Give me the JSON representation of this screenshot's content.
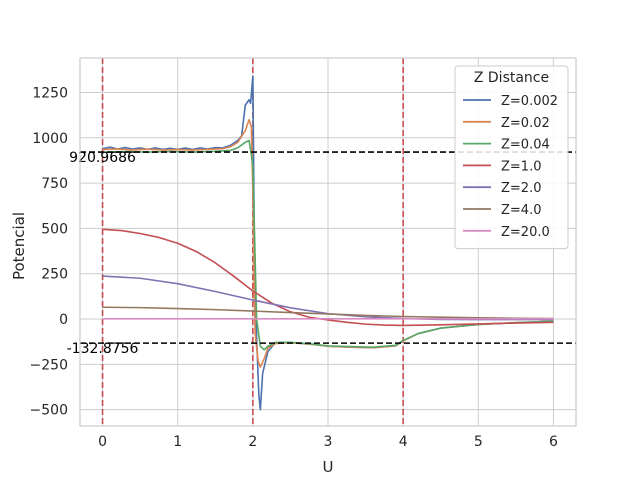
{
  "chart_data": {
    "type": "line",
    "title": "",
    "xlabel": "U",
    "ylabel": "Potencial",
    "xlim": [
      -0.3,
      6.3
    ],
    "ylim": [
      -590,
      1440
    ],
    "xticks": [
      0,
      1,
      2,
      3,
      4,
      5,
      6
    ],
    "yticks": [
      -500,
      -250,
      0,
      250,
      500,
      750,
      1000,
      1250
    ],
    "ytick_labels": [
      "−500",
      "−250",
      "0",
      "250",
      "500",
      "750",
      "1000",
      "1250"
    ],
    "grid": true,
    "legend": {
      "title": "Z Distance",
      "placement": "top-right"
    },
    "vlines": [
      {
        "x": 0,
        "color": "#c44e52"
      },
      {
        "x": 2,
        "color": "#c44e52"
      },
      {
        "x": 4,
        "color": "#c44e52"
      }
    ],
    "hlines": [
      {
        "y": 920.9686,
        "label": "920.9686",
        "color": "#000000"
      },
      {
        "y": -132.8756,
        "label": "-132.8756",
        "color": "#000000"
      }
    ],
    "series": [
      {
        "name": "Z=0.002",
        "color": "#4c72b0",
        "x": [
          0,
          0.1,
          0.2,
          0.3,
          0.4,
          0.5,
          0.6,
          0.7,
          0.8,
          0.9,
          1.0,
          1.1,
          1.2,
          1.3,
          1.4,
          1.5,
          1.6,
          1.7,
          1.8,
          1.85,
          1.9,
          1.95,
          1.97,
          2.0,
          2.02,
          2.05,
          2.08,
          2.1,
          2.13,
          2.2,
          2.3,
          2.5,
          2.8,
          3.0,
          3.3,
          3.6,
          3.9,
          4.0,
          4.2,
          4.5,
          5.0,
          5.5,
          6.0
        ],
        "y": [
          940,
          948,
          938,
          946,
          938,
          944,
          936,
          944,
          936,
          942,
          936,
          943,
          936,
          944,
          938,
          946,
          944,
          958,
          985,
          1010,
          1180,
          1210,
          1190,
          1340,
          400,
          -100,
          -420,
          -500,
          -300,
          -180,
          -130,
          -130,
          -140,
          -150,
          -155,
          -158,
          -148,
          -120,
          -80,
          -50,
          -30,
          -20,
          -12
        ]
      },
      {
        "name": "Z=0.02",
        "color": "#dd8452",
        "x": [
          0,
          0.2,
          0.4,
          0.6,
          0.8,
          1.0,
          1.2,
          1.4,
          1.6,
          1.7,
          1.8,
          1.9,
          1.95,
          1.98,
          2.0,
          2.03,
          2.07,
          2.1,
          2.15,
          2.2,
          2.3,
          2.5,
          2.8,
          3.0,
          3.3,
          3.6,
          3.9,
          4.0,
          4.2,
          4.5,
          5.0,
          5.5,
          6.0
        ],
        "y": [
          935,
          938,
          933,
          937,
          932,
          935,
          932,
          936,
          940,
          950,
          975,
          1040,
          1100,
          1060,
          700,
          -80,
          -230,
          -265,
          -220,
          -160,
          -135,
          -130,
          -140,
          -150,
          -155,
          -158,
          -148,
          -120,
          -80,
          -50,
          -30,
          -20,
          -12
        ]
      },
      {
        "name": "Z=0.04",
        "color": "#55a868",
        "x": [
          0,
          0.3,
          0.6,
          0.9,
          1.2,
          1.5,
          1.7,
          1.8,
          1.9,
          1.95,
          2.0,
          2.05,
          2.1,
          2.15,
          2.2,
          2.3,
          2.5,
          2.8,
          3.0,
          3.3,
          3.6,
          3.9,
          4.0,
          4.2,
          4.5,
          5.0,
          5.5,
          6.0
        ],
        "y": [
          920,
          924,
          921,
          924,
          921,
          925,
          930,
          945,
          975,
          985,
          850,
          0,
          -150,
          -170,
          -150,
          -130,
          -128,
          -138,
          -148,
          -152,
          -155,
          -145,
          -118,
          -80,
          -50,
          -30,
          -20,
          -12
        ]
      },
      {
        "name": "Z=1.0",
        "color": "#c44e52",
        "x": [
          0,
          0.25,
          0.5,
          0.75,
          1.0,
          1.25,
          1.5,
          1.75,
          2.0,
          2.25,
          2.5,
          2.75,
          3.0,
          3.25,
          3.5,
          3.75,
          4.0,
          4.5,
          5.0,
          5.5,
          6.0
        ],
        "y": [
          495,
          488,
          472,
          450,
          418,
          372,
          310,
          235,
          155,
          88,
          40,
          10,
          -5,
          -18,
          -28,
          -33,
          -35,
          -32,
          -27,
          -22,
          -18
        ]
      },
      {
        "name": "Z=2.0",
        "color": "#8172b3",
        "x": [
          0,
          0.5,
          1.0,
          1.5,
          2.0,
          2.5,
          3.0,
          3.5,
          4.0,
          4.5,
          5.0,
          5.5,
          6.0
        ],
        "y": [
          237,
          225,
          195,
          152,
          105,
          62,
          30,
          12,
          3,
          -2,
          -3,
          -3,
          -3
        ]
      },
      {
        "name": "Z=4.0",
        "color": "#937860",
        "x": [
          0,
          0.5,
          1.0,
          1.5,
          2.0,
          2.5,
          3.0,
          3.5,
          4.0,
          4.5,
          5.0,
          5.5,
          6.0
        ],
        "y": [
          65,
          63,
          58,
          52,
          44,
          36,
          28,
          20,
          14,
          10,
          7,
          4,
          3
        ]
      },
      {
        "name": "Z=20.0",
        "color": "#da8bc3",
        "x": [
          0,
          1.0,
          2.0,
          3.0,
          4.0,
          5.0,
          6.0
        ],
        "y": [
          1,
          1,
          1,
          1,
          1,
          1,
          1
        ]
      }
    ]
  }
}
